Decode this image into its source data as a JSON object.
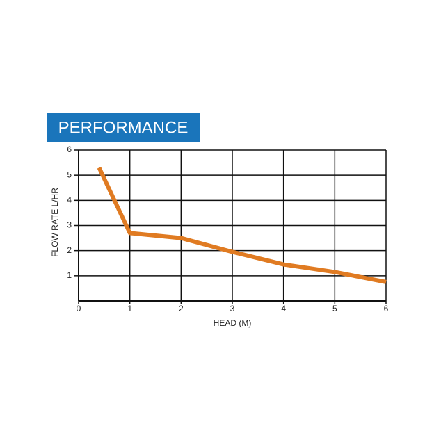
{
  "chart_data": {
    "type": "line",
    "title": "PERFORMANCE",
    "x_label": "HEAD (M)",
    "y_label": "FLOW RATE L/HR",
    "x": [
      0.4,
      1,
      2,
      3,
      4,
      5,
      6
    ],
    "values": [
      5.3,
      2.7,
      2.5,
      1.95,
      1.45,
      1.15,
      0.75
    ],
    "color": "#e07b22",
    "xlim": [
      0,
      6
    ],
    "xticks": [
      0,
      1,
      2,
      3,
      4,
      5,
      6
    ],
    "ylim": [
      0,
      6
    ],
    "yticks": [
      1,
      2,
      3,
      4,
      5,
      6
    ],
    "grid": true
  }
}
